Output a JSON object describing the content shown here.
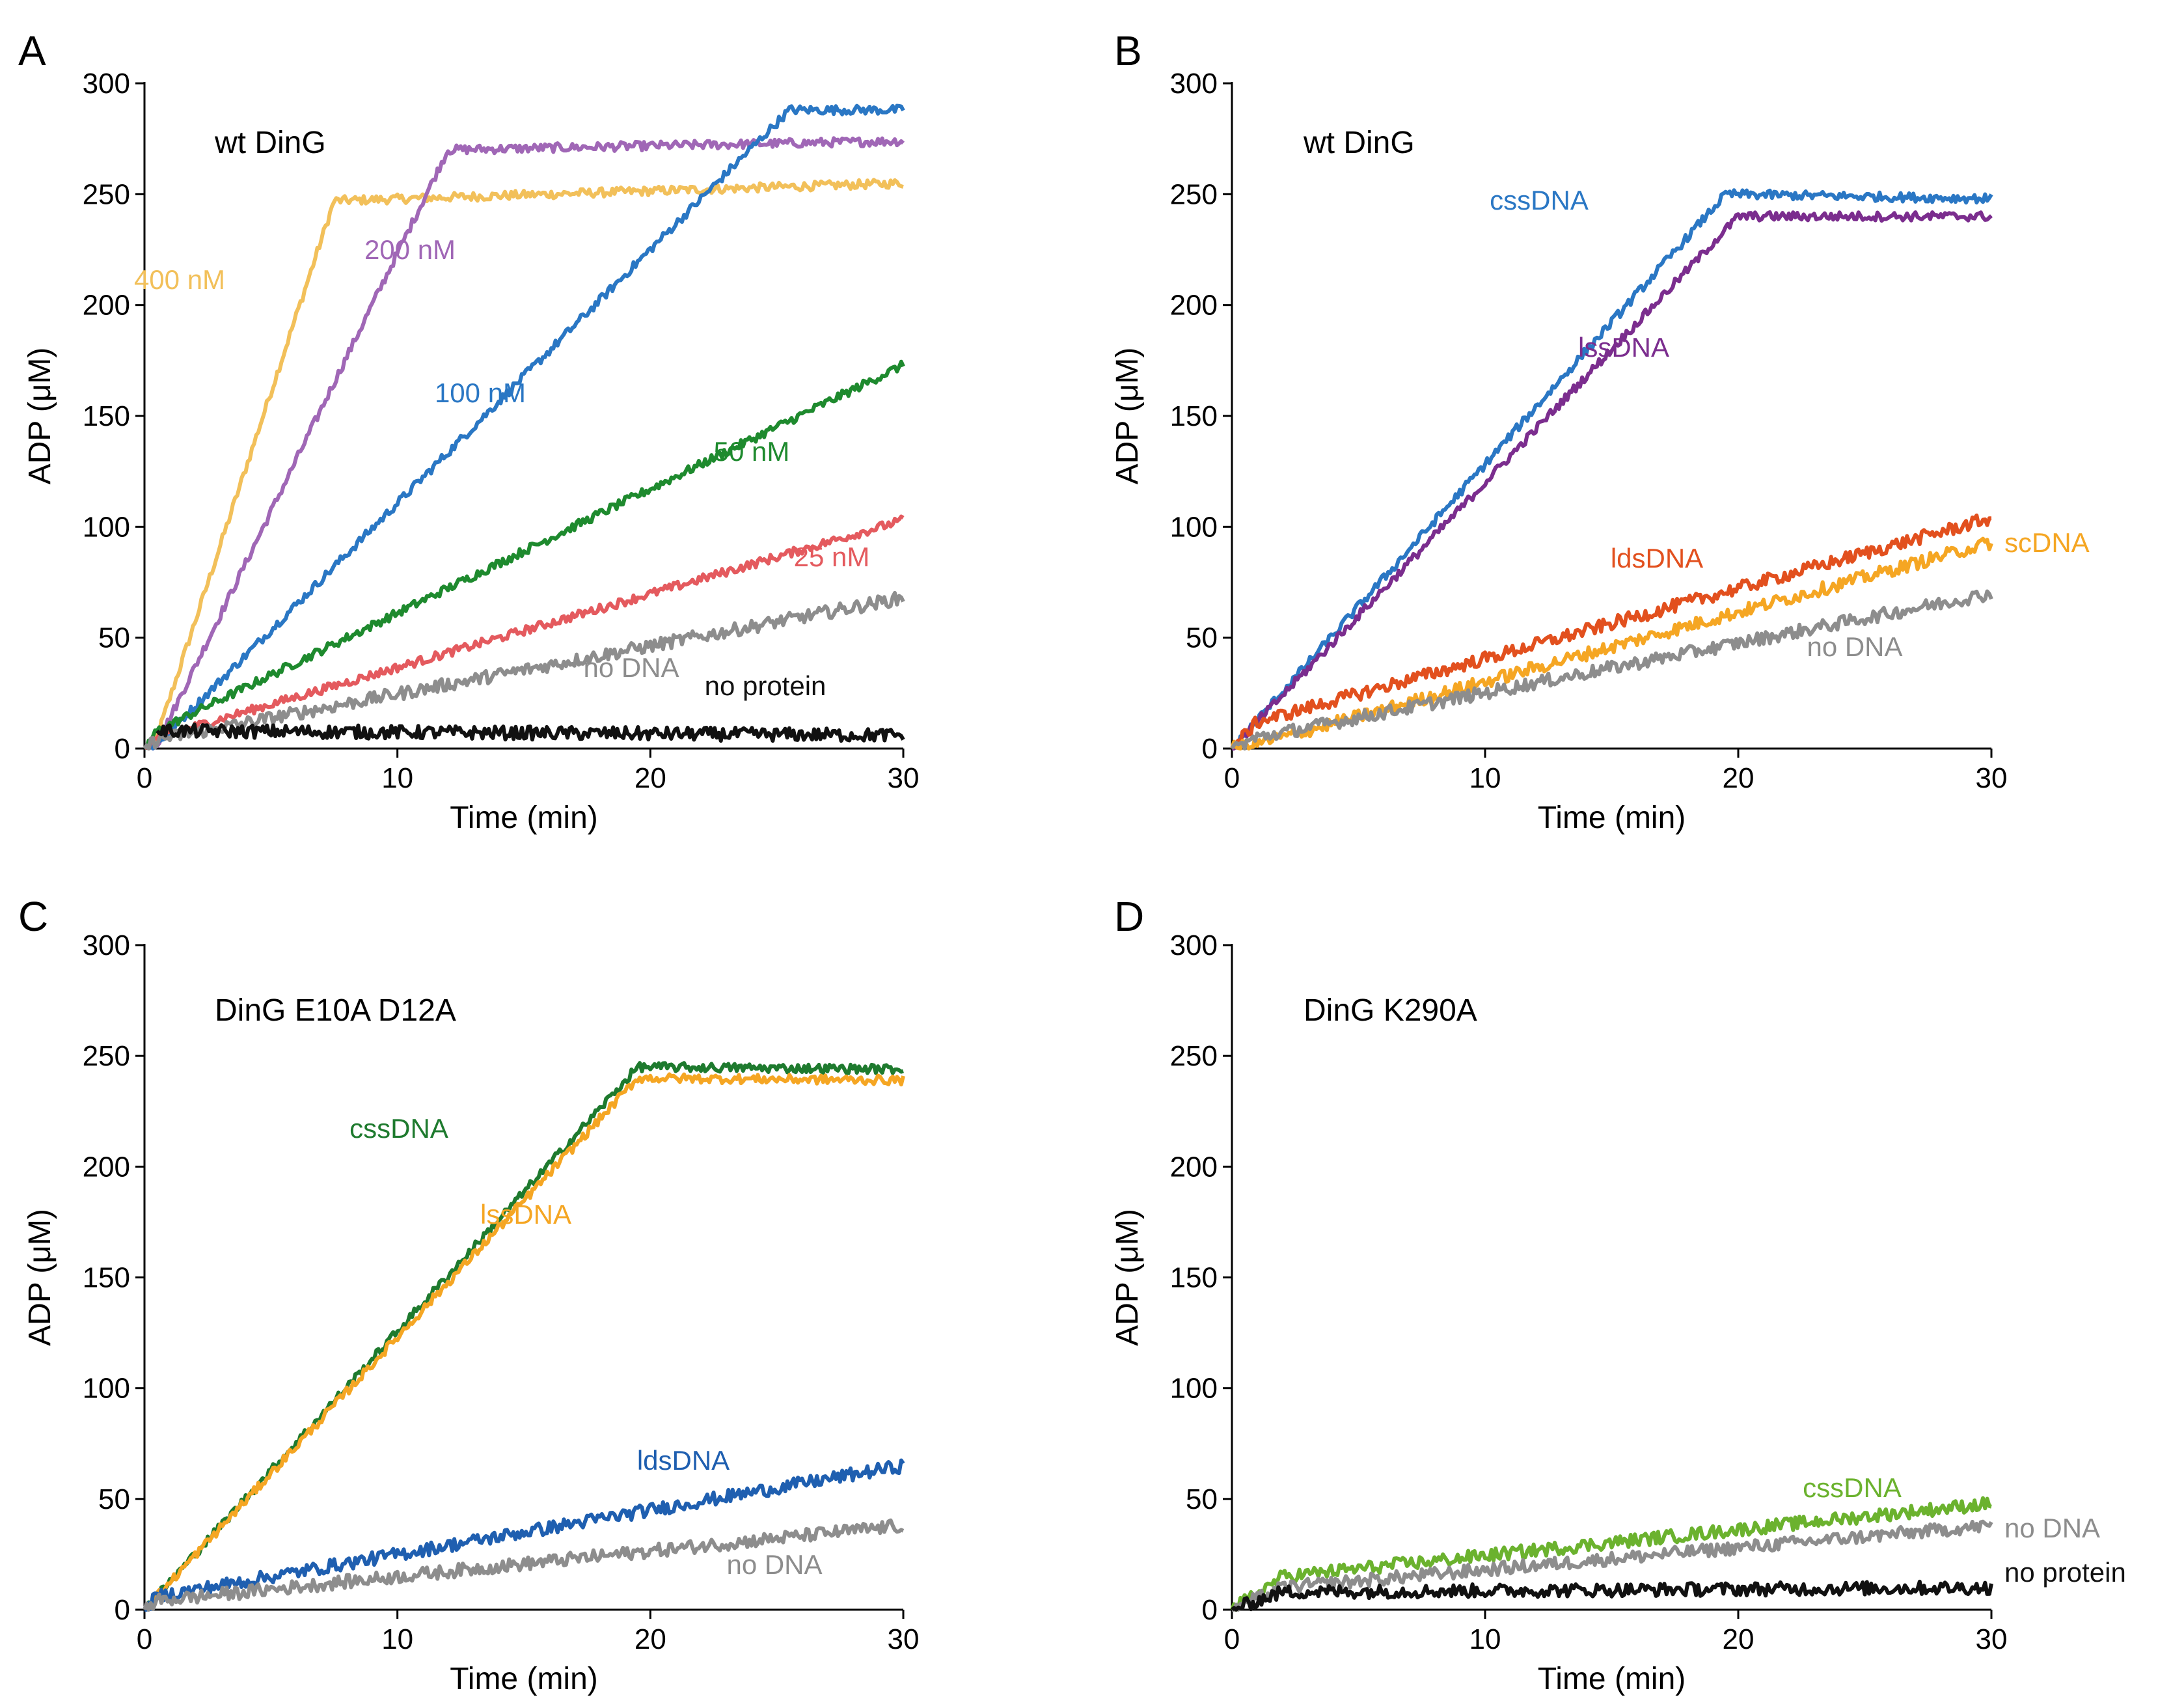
{
  "chart_data": [
    {
      "panel": "A",
      "type": "line",
      "title": "wt DinG",
      "xlabel": "Time (min)",
      "ylabel": "ADP (μM)",
      "xlim": [
        0,
        30
      ],
      "ylim": [
        0,
        300
      ],
      "xticks": [
        0,
        10,
        20,
        30
      ],
      "yticks": [
        0,
        50,
        100,
        150,
        200,
        250,
        300
      ],
      "series": [
        {
          "name": "400 nM",
          "color": "#F2C05A",
          "x": [
            0,
            0.4,
            7.5,
            30
          ],
          "y": [
            0,
            2,
            247,
            255
          ],
          "noise": 2
        },
        {
          "name": "200 nM",
          "color": "#A067B6",
          "x": [
            0,
            0.5,
            12,
            30
          ],
          "y": [
            0,
            2,
            270,
            274
          ],
          "noise": 2
        },
        {
          "name": "100 nM",
          "color": "#2A77C4",
          "x": [
            0,
            0.5,
            25.5,
            30
          ],
          "y": [
            0,
            2,
            288,
            288
          ],
          "noise": 2
        },
        {
          "name": "50 nM",
          "color": "#1E8A2E",
          "x": [
            0,
            0.5,
            30
          ],
          "y": [
            0,
            8,
            173
          ],
          "noise": 2
        },
        {
          "name": "25 nM",
          "color": "#E45A5E",
          "x": [
            0,
            0.5,
            30
          ],
          "y": [
            0,
            5,
            103
          ],
          "noise": 2
        },
        {
          "name": "no DNA",
          "color": "#8D8D8D",
          "x": [
            0,
            0.5,
            30
          ],
          "y": [
            0,
            4,
            68
          ],
          "noise": 3
        },
        {
          "name": "no protein",
          "color": "#111111",
          "x": [
            0.5,
            30
          ],
          "y": [
            8,
            6
          ],
          "noise": 3
        }
      ]
    },
    {
      "panel": "B",
      "type": "line",
      "title": "wt DinG",
      "xlabel": "Time (min)",
      "ylabel": "ADP (μM)",
      "xlim": [
        0,
        30
      ],
      "ylim": [
        0,
        300
      ],
      "xticks": [
        0,
        10,
        20,
        30
      ],
      "yticks": [
        0,
        50,
        100,
        150,
        200,
        250,
        300
      ],
      "series": [
        {
          "name": "cssDNA",
          "color": "#2A77C4",
          "x": [
            0,
            19.5,
            30
          ],
          "y": [
            0,
            250,
            248
          ],
          "noise": 2
        },
        {
          "name": "lssDNA",
          "color": "#7B2D8E",
          "x": [
            0,
            20,
            30
          ],
          "y": [
            0,
            240,
            240
          ],
          "noise": 2
        },
        {
          "name": "ldsDNA",
          "color": "#E2501E",
          "x": [
            0,
            1,
            30
          ],
          "y": [
            0,
            12,
            104
          ],
          "noise": 3
        },
        {
          "name": "scDNA",
          "color": "#F5A623",
          "x": [
            0,
            2,
            30
          ],
          "y": [
            0,
            5,
            93
          ],
          "noise": 3
        },
        {
          "name": "no DNA",
          "color": "#8D8D8D",
          "x": [
            0,
            1,
            30
          ],
          "y": [
            0,
            5,
            70
          ],
          "noise": 3
        }
      ]
    },
    {
      "panel": "C",
      "type": "line",
      "title": "DinG E10A D12A",
      "xlabel": "Time (min)",
      "ylabel": "ADP (μM)",
      "xlim": [
        0,
        30
      ],
      "ylim": [
        0,
        300
      ],
      "xticks": [
        0,
        10,
        20,
        30
      ],
      "yticks": [
        0,
        50,
        100,
        150,
        200,
        250,
        300
      ],
      "series": [
        {
          "name": "cssDNA",
          "color": "#1E7A2E",
          "x": [
            0,
            19.5,
            30
          ],
          "y": [
            0,
            245,
            244
          ],
          "noise": 2
        },
        {
          "name": "lssDNA",
          "color": "#F5A623",
          "x": [
            0,
            19.5,
            30
          ],
          "y": [
            0,
            240,
            239
          ],
          "noise": 2
        },
        {
          "name": "ldsDNA",
          "color": "#1F5FB0",
          "x": [
            0,
            0.5,
            30
          ],
          "y": [
            0,
            6,
            65
          ],
          "noise": 3
        },
        {
          "name": "no DNA",
          "color": "#8D8D8D",
          "x": [
            0,
            0.5,
            30
          ],
          "y": [
            0,
            4,
            38
          ],
          "noise": 3
        }
      ]
    },
    {
      "panel": "D",
      "type": "line",
      "title": "DinG K290A",
      "xlabel": "Time (min)",
      "ylabel": "ADP (μM)",
      "xlim": [
        0,
        30
      ],
      "ylim": [
        0,
        300
      ],
      "xticks": [
        0,
        10,
        20,
        30
      ],
      "yticks": [
        0,
        50,
        100,
        150,
        200,
        250,
        300
      ],
      "series": [
        {
          "name": "cssDNA",
          "color": "#6BB22E",
          "x": [
            0,
            2,
            30
          ],
          "y": [
            0,
            15,
            48
          ],
          "noise": 3
        },
        {
          "name": "no DNA",
          "color": "#8D8D8D",
          "x": [
            0,
            2,
            30
          ],
          "y": [
            0,
            10,
            38
          ],
          "noise": 3
        },
        {
          "name": "no protein",
          "color": "#111111",
          "x": [
            0,
            2,
            30
          ],
          "y": [
            0,
            8,
            10
          ],
          "noise": 3
        }
      ]
    }
  ]
}
